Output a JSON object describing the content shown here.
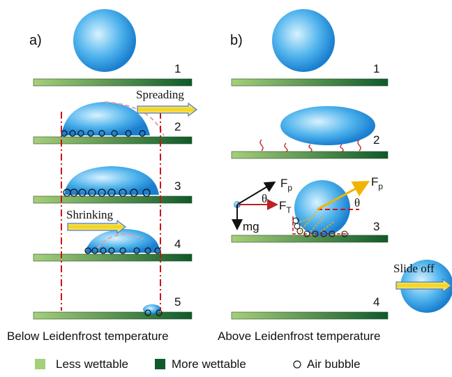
{
  "panels": [
    {
      "label": "a)",
      "steps": [
        "1",
        "2",
        "3",
        "4",
        "5"
      ],
      "arrows": [
        "Spreading",
        "Shrinking"
      ],
      "caption": "Below Leidenfrost  temperature"
    },
    {
      "label": "b)",
      "steps": [
        "1",
        "2",
        "3",
        "4"
      ],
      "arrows": [
        "Slide off"
      ],
      "forces": [
        {
          "symbol": "F",
          "sub": "p"
        },
        {
          "symbol": "F",
          "sub": "T"
        },
        {
          "symbol": "θ"
        },
        {
          "symbol": "mg"
        },
        {
          "symbol": "F",
          "sub": "p"
        },
        {
          "symbol": "θ"
        }
      ],
      "caption": "Above Leidenfrost  temperature"
    }
  ],
  "legend": [
    "Less wettable",
    "More wettable",
    "Air bubble"
  ]
}
